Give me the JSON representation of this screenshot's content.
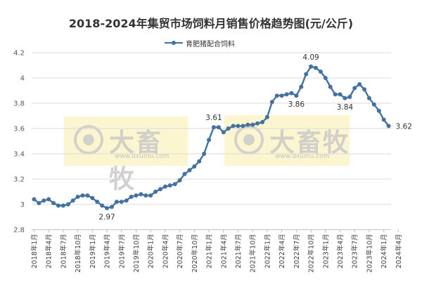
{
  "chart_data": {
    "type": "line",
    "title": "2018-2024年集贸市场饲料月销售价格趋势图(元/公斤)",
    "xlabel": "",
    "ylabel": "",
    "ylim": [
      2.8,
      4.2
    ],
    "yticks": [
      "2.8",
      "3",
      "3.2",
      "3.4",
      "3.6",
      "3.8",
      "4",
      "4.2"
    ],
    "grid": "horizontal",
    "legend_position": "top-center",
    "line_color": "#4472a0",
    "xtick_labels": [
      "2018年1月",
      "2018年4月",
      "2018年7月",
      "2018年10月",
      "2019年1月",
      "2019年4月",
      "2019年7月",
      "2019年10月",
      "2020年1月",
      "2020年4月",
      "2020年7月",
      "2020年10月",
      "2021年1月",
      "2021年4月",
      "2021年7月",
      "2021年10月",
      "2022年1月",
      "2022年4月",
      "2022年7月",
      "2022年10月",
      "2023年1月",
      "2023年4月",
      "2023年7月",
      "2023年10月",
      "2024年1月",
      "2024年4月"
    ],
    "series": [
      {
        "name": "育肥猪配合饲料",
        "values": [
          3.04,
          3.01,
          3.03,
          3.04,
          3.01,
          2.99,
          2.99,
          3.0,
          3.03,
          3.06,
          3.07,
          3.07,
          3.05,
          3.02,
          2.99,
          2.97,
          2.98,
          3.02,
          3.02,
          3.03,
          3.06,
          3.07,
          3.08,
          3.07,
          3.07,
          3.1,
          3.12,
          3.14,
          3.15,
          3.16,
          3.19,
          3.24,
          3.27,
          3.3,
          3.34,
          3.4,
          3.51,
          3.61,
          3.61,
          3.57,
          3.6,
          3.62,
          3.62,
          3.62,
          3.63,
          3.63,
          3.64,
          3.65,
          3.69,
          3.81,
          3.86,
          3.86,
          3.87,
          3.88,
          3.86,
          3.93,
          4.03,
          4.09,
          4.08,
          4.05,
          4.0,
          3.93,
          3.87,
          3.87,
          3.84,
          3.85,
          3.92,
          3.95,
          3.91,
          3.84,
          3.79,
          3.74,
          3.67,
          3.62
        ]
      }
    ],
    "data_labels": [
      {
        "index": 15,
        "text": "2.97"
      },
      {
        "index": 37,
        "text": "3.61"
      },
      {
        "index": 54,
        "text": "3.86"
      },
      {
        "index": 57,
        "text": "4.09"
      },
      {
        "index": 64,
        "text": "3.84"
      },
      {
        "index": 73,
        "text": "3.62"
      }
    ]
  },
  "watermark": {
    "text": "大畜牧",
    "url": "www.dxumu.com"
  }
}
